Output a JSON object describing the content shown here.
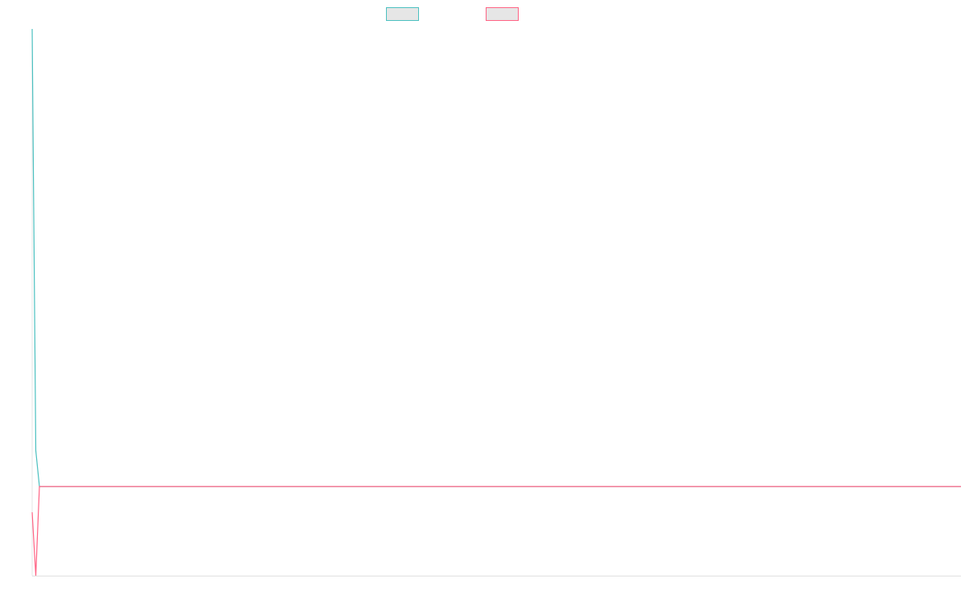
{
  "chart_data": {
    "type": "line",
    "legend": "top",
    "x": [
      0,
      1,
      2,
      256
    ],
    "xlim": [
      0,
      256
    ],
    "ylim": [
      0,
      100
    ],
    "series": [
      {
        "color": "#4bc0c0",
        "values": [
          100,
          22.9,
          16.3,
          16.3
        ]
      },
      {
        "color": "#ff6384",
        "values": [
          11.6,
          0,
          16.3,
          16.3
        ]
      }
    ]
  }
}
